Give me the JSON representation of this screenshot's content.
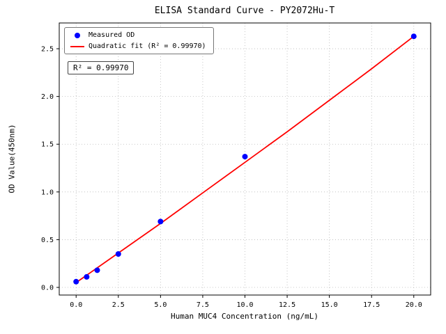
{
  "chart_data": {
    "type": "scatter",
    "title": "ELISA Standard Curve - PY2072Hu-T",
    "xlabel": "Human MUC4 Concentration (ng/mL)",
    "ylabel": "OD Value(450nm)",
    "xlim": [
      -1,
      21
    ],
    "ylim": [
      -0.08,
      2.77
    ],
    "xticks": [
      0,
      2.5,
      5,
      7.5,
      10,
      12.5,
      15,
      17.5,
      20
    ],
    "yticks": [
      0,
      0.5,
      1,
      1.5,
      2,
      2.5
    ],
    "grid": true,
    "legend_position": "upper left",
    "annotation": "R² = 0.99970",
    "series": [
      {
        "name": "Measured OD",
        "type": "scatter",
        "color": "#0000ff",
        "x": [
          0,
          0.625,
          1.25,
          2.5,
          5,
          10,
          20
        ],
        "y": [
          0.06,
          0.11,
          0.18,
          0.35,
          0.69,
          1.37,
          2.63
        ]
      },
      {
        "name": "Quadratic fit (R² = 0.99970)",
        "type": "line",
        "color": "#ff0000",
        "x": [
          0,
          2.5,
          5,
          7.5,
          10,
          12.5,
          15,
          17.5,
          20
        ],
        "y": [
          0.05,
          0.36,
          0.67,
          0.99,
          1.31,
          1.63,
          1.96,
          2.29,
          2.63
        ]
      }
    ]
  }
}
